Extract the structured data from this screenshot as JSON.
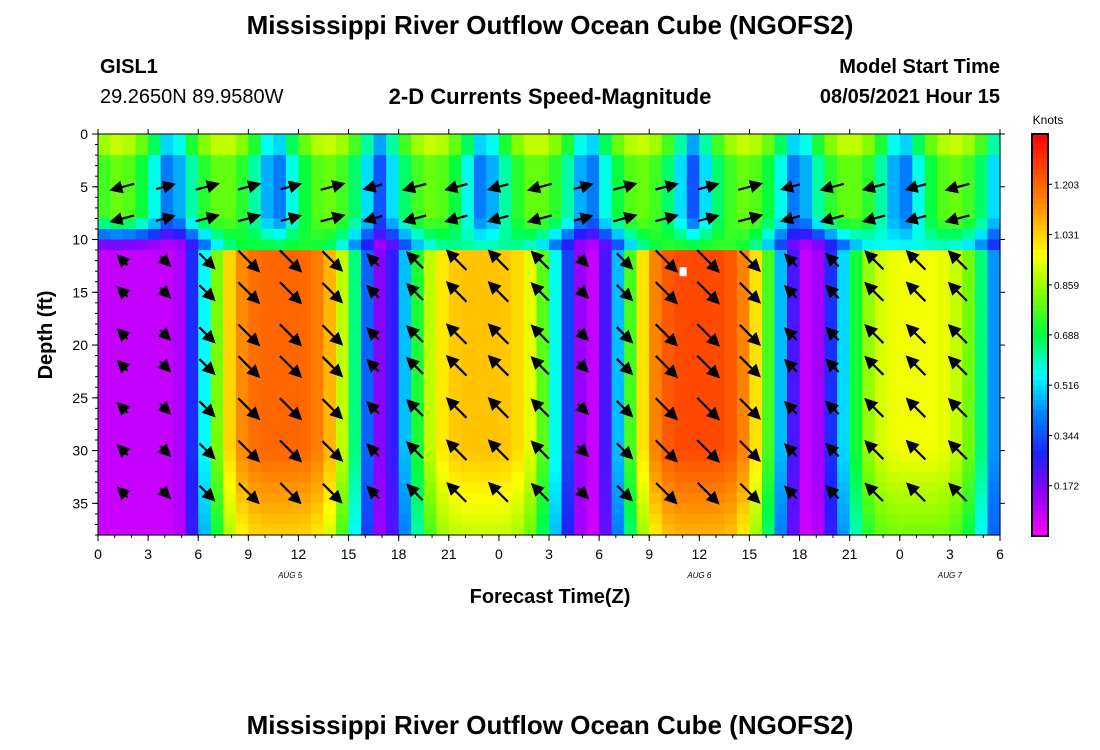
{
  "page_title": "Mississippi River Outflow Ocean Cube (NGOFS2)",
  "footer_title": "Mississippi River Outflow Ocean Cube (NGOFS2)",
  "station": {
    "id": "GISL1",
    "coords": "29.2650N  89.9580W"
  },
  "chart_title": "2-D Currents Speed-Magnitude",
  "model_start": {
    "label": "Model Start Time",
    "value": "08/05/2021 Hour 15"
  },
  "colorbar": {
    "unit_label": "Knots",
    "tick_labels": [
      "1.203",
      "1.031",
      "0.859",
      "0.688",
      "0.516",
      "0.344",
      "0.172"
    ],
    "tick_values": [
      1.203,
      1.031,
      0.859,
      0.688,
      0.516,
      0.344,
      0.172
    ],
    "range": [
      0.0,
      1.375
    ],
    "colors": [
      "#ff00ff",
      "#9900ff",
      "#2020ff",
      "#0080ff",
      "#00ffff",
      "#00ff40",
      "#80ff00",
      "#ffff00",
      "#ffa000",
      "#ff5000",
      "#ff0000"
    ]
  },
  "chart_data": {
    "type": "heatmap",
    "xlabel": "Forecast Time(Z)",
    "ylabel": "Depth (ft)",
    "x_tick_labels": [
      "0",
      "3",
      "6",
      "9",
      "12",
      "15",
      "18",
      "21",
      "0",
      "3",
      "6",
      "9",
      "12",
      "15",
      "18",
      "21",
      "0",
      "3",
      "6"
    ],
    "x_tick_hours": [
      0,
      3,
      6,
      9,
      12,
      15,
      18,
      21,
      24,
      27,
      30,
      33,
      36,
      39,
      42,
      45,
      48,
      51,
      54
    ],
    "date_labels": [
      {
        "text": "AUG 5",
        "hour": 11.5
      },
      {
        "text": "AUG 6",
        "hour": 36
      },
      {
        "text": "AUG 7",
        "hour": 51
      }
    ],
    "xlim": [
      0,
      54
    ],
    "y_tick_labels": [
      "0",
      "5",
      "10",
      "15",
      "20",
      "25",
      "30",
      "35"
    ],
    "y_tick_values": [
      0,
      5,
      10,
      15,
      20,
      25,
      30,
      35
    ],
    "ylim": [
      0,
      38
    ],
    "speed_peaks_hours": [
      11,
      23,
      36,
      49
    ],
    "speed_peak_values_knots": [
      1.2,
      1.05,
      1.25,
      0.95
    ],
    "slack_hours": [
      4.5,
      17,
      30,
      42
    ],
    "surface_max_speed_knots": 0.8,
    "marker": {
      "hour": 35,
      "depth_ft": 13
    }
  }
}
